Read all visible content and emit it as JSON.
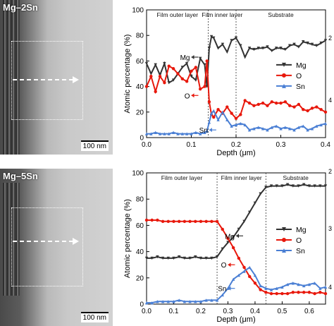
{
  "panels": [
    {
      "micrograph": {
        "label": "Mg–2Sn",
        "scale_bar": "100 nm"
      },
      "chart_data": {
        "type": "line",
        "xlabel": "Depth (μm)",
        "ylabel": "Atomic percentage (%)",
        "xlim": [
          0,
          0.4
        ],
        "ylim": [
          0,
          100
        ],
        "xticks": [
          "0.0",
          "0.1",
          "0.2",
          "0.3",
          "0.4"
        ],
        "yticks": [
          "0",
          "20",
          "40",
          "60",
          "80",
          "100"
        ],
        "right_axis_ticks": [
          "2",
          "4"
        ],
        "regions": [
          "Film outer layer",
          "Film inner layer",
          "Substrate"
        ],
        "boundaries": [
          0.138,
          0.2
        ],
        "annotations": [
          {
            "text": "Mg",
            "series": "Mg",
            "x": 0.1,
            "y": 63
          },
          {
            "text": "O",
            "series": "O",
            "x": 0.1,
            "y": 33
          },
          {
            "text": "Sn",
            "series": "Sn",
            "x": 0.14,
            "y": 6
          }
        ],
        "legend": [
          "Mg",
          "O",
          "Sn"
        ],
        "legend_position": "center-right",
        "series": [
          {
            "name": "Mg",
            "color": "#333333",
            "x": [
              0,
              0.01,
              0.02,
              0.03,
              0.04,
              0.05,
              0.06,
              0.07,
              0.08,
              0.09,
              0.1,
              0.11,
              0.12,
              0.13,
              0.135,
              0.14,
              0.145,
              0.15,
              0.16,
              0.17,
              0.18,
              0.19,
              0.2,
              0.21,
              0.22,
              0.23,
              0.24,
              0.25,
              0.26,
              0.27,
              0.28,
              0.29,
              0.3,
              0.31,
              0.32,
              0.33,
              0.34,
              0.35,
              0.36,
              0.37,
              0.38,
              0.39,
              0.4
            ],
            "y": [
              58,
              50,
              57,
              49,
              58,
              43,
              45,
              50,
              55,
              58,
              48,
              45,
              62,
              57,
              40,
              70,
              79,
              78,
              70,
              73,
              67,
              76,
              78,
              72,
              63,
              70,
              69,
              70,
              70,
              71,
              68,
              70,
              70,
              69,
              72,
              73,
              71,
              75,
              74,
              73,
              72,
              74,
              76
            ]
          },
          {
            "name": "O",
            "color": "#e8180c",
            "x": [
              0,
              0.01,
              0.02,
              0.03,
              0.04,
              0.05,
              0.06,
              0.07,
              0.08,
              0.09,
              0.1,
              0.11,
              0.12,
              0.13,
              0.135,
              0.14,
              0.145,
              0.15,
              0.16,
              0.17,
              0.18,
              0.19,
              0.2,
              0.21,
              0.22,
              0.23,
              0.24,
              0.25,
              0.26,
              0.27,
              0.28,
              0.29,
              0.3,
              0.31,
              0.32,
              0.33,
              0.34,
              0.35,
              0.36,
              0.37,
              0.38,
              0.39,
              0.4
            ],
            "y": [
              40,
              48,
              36,
              48,
              43,
              56,
              54,
              50,
              46,
              44,
              52,
              55,
              38,
              40,
              60,
              28,
              18,
              16,
              22,
              19,
              24,
              19,
              15,
              18,
              29,
              27,
              25,
              26,
              27,
              25,
              28,
              27,
              27,
              28,
              25,
              24,
              26,
              22,
              21,
              23,
              24,
              22,
              20
            ]
          },
          {
            "name": "Sn",
            "color": "#4a7fd4",
            "x": [
              0,
              0.01,
              0.02,
              0.03,
              0.04,
              0.05,
              0.06,
              0.07,
              0.08,
              0.09,
              0.1,
              0.11,
              0.12,
              0.13,
              0.135,
              0.14,
              0.145,
              0.15,
              0.16,
              0.17,
              0.18,
              0.19,
              0.2,
              0.21,
              0.22,
              0.23,
              0.24,
              0.25,
              0.26,
              0.27,
              0.28,
              0.29,
              0.3,
              0.31,
              0.32,
              0.33,
              0.34,
              0.35,
              0.36,
              0.37,
              0.38,
              0.39,
              0.4
            ],
            "y": [
              3,
              3,
              4,
              3,
              3,
              3,
              4,
              3,
              3,
              3,
              3,
              4,
              3,
              4,
              5,
              12,
              19,
              21,
              14,
              20,
              14,
              9,
              10,
              11,
              10,
              6,
              7,
              8,
              7,
              6,
              8,
              9,
              7,
              8,
              7,
              6,
              8,
              9,
              6,
              7,
              9,
              10,
              11
            ]
          }
        ]
      }
    },
    {
      "micrograph": {
        "label": "Mg–5Sn",
        "scale_bar": "100 nm"
      },
      "chart_data": {
        "type": "line",
        "xlabel": "Depth (μm)",
        "ylabel": "Atomic percentage (%)",
        "xlim": [
          0,
          0.66
        ],
        "ylim": [
          0,
          100
        ],
        "xticks": [
          "0.0",
          "0.1",
          "0.2",
          "0.3",
          "0.4",
          "0.5",
          "0.6"
        ],
        "yticks": [
          "0",
          "20",
          "40",
          "60",
          "80",
          "100"
        ],
        "right_axis_ticks": [
          "2",
          "3",
          "4"
        ],
        "regions": [
          "Film outer layer",
          "Film inner layer",
          "Substrate"
        ],
        "boundaries": [
          0.26,
          0.44
        ],
        "annotations": [
          {
            "text": "Mg",
            "series": "Mg",
            "x": 0.33,
            "y": 52
          },
          {
            "text": "O",
            "series": "O",
            "x": 0.3,
            "y": 30
          },
          {
            "text": "Sn",
            "series": "Sn",
            "x": 0.3,
            "y": 12
          }
        ],
        "legend": [
          "Mg",
          "O",
          "Sn"
        ],
        "legend_position": "center-right",
        "series": [
          {
            "name": "Mg",
            "color": "#333333",
            "x": [
              0,
              0.02,
              0.04,
              0.06,
              0.08,
              0.1,
              0.12,
              0.14,
              0.16,
              0.18,
              0.2,
              0.22,
              0.24,
              0.26,
              0.28,
              0.3,
              0.32,
              0.34,
              0.36,
              0.38,
              0.4,
              0.42,
              0.44,
              0.46,
              0.48,
              0.5,
              0.52,
              0.54,
              0.56,
              0.58,
              0.6,
              0.62,
              0.64,
              0.66
            ],
            "y": [
              35,
              35,
              36,
              35,
              35,
              35,
              36,
              35,
              35,
              36,
              35,
              35,
              35,
              36,
              42,
              47,
              51,
              57,
              63,
              70,
              77,
              84,
              89,
              90,
              90,
              90,
              91,
              90,
              90,
              91,
              90,
              90,
              90,
              90
            ]
          },
          {
            "name": "O",
            "color": "#e8180c",
            "x": [
              0,
              0.02,
              0.04,
              0.06,
              0.08,
              0.1,
              0.12,
              0.14,
              0.16,
              0.18,
              0.2,
              0.22,
              0.24,
              0.26,
              0.28,
              0.3,
              0.32,
              0.34,
              0.36,
              0.38,
              0.4,
              0.42,
              0.44,
              0.46,
              0.48,
              0.5,
              0.52,
              0.54,
              0.56,
              0.58,
              0.6,
              0.62,
              0.64,
              0.66
            ],
            "y": [
              64,
              64,
              64,
              63,
              63,
              63,
              63,
              63,
              63,
              63,
              63,
              63,
              63,
              63,
              57,
              50,
              43,
              35,
              28,
              21,
              16,
              11,
              9,
              8,
              8,
              8,
              8,
              9,
              9,
              9,
              9,
              8,
              9,
              8
            ]
          },
          {
            "name": "Sn",
            "color": "#4a7fd4",
            "x": [
              0,
              0.02,
              0.04,
              0.06,
              0.08,
              0.1,
              0.12,
              0.14,
              0.16,
              0.18,
              0.2,
              0.22,
              0.24,
              0.26,
              0.28,
              0.3,
              0.32,
              0.34,
              0.36,
              0.38,
              0.4,
              0.42,
              0.44,
              0.46,
              0.48,
              0.5,
              0.52,
              0.54,
              0.56,
              0.58,
              0.6,
              0.62,
              0.64,
              0.66
            ],
            "y": [
              1,
              1,
              2,
              2,
              2,
              2,
              3,
              2,
              2,
              2,
              2,
              3,
              3,
              3,
              7,
              12,
              19,
              22,
              25,
              28,
              22,
              14,
              12,
              11,
              12,
              13,
              15,
              16,
              15,
              14,
              15,
              16,
              12,
              13
            ]
          }
        ]
      }
    }
  ]
}
